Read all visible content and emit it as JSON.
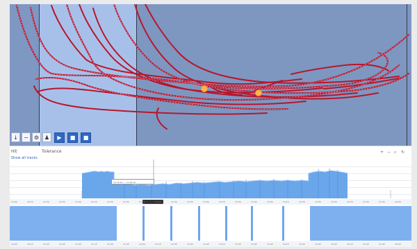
{
  "toolbar": {
    "left_label": "Hit",
    "mid_label": "Tolerance",
    "link": "Show all tracks"
  },
  "tooltip": {
    "text": "10:34:22 — 11:58:44"
  },
  "axis": {
    "top_ticks": [
      "10:00",
      "10:15",
      "10:30",
      "10:45",
      "11:00",
      "11:15",
      "11:30",
      "11:45",
      "12:00",
      "12:15",
      "12:30",
      "12:45",
      "13:00",
      "13:15",
      "13:30",
      "13:45",
      "14:00",
      "14:15",
      "14:30",
      "14:45",
      "15:00",
      "15:15",
      "15:30",
      "15:45",
      "16:00"
    ],
    "bottom_ticks": [
      "10:00",
      "10:15",
      "10:30",
      "10:45",
      "11:00",
      "11:15",
      "11:30",
      "11:45",
      "12:00",
      "12:15",
      "12:30",
      "12:45",
      "13:00",
      "13:15",
      "13:30",
      "13:45",
      "14:00",
      "14:15",
      "14:30",
      "14:45",
      "15:00",
      "15:15",
      "15:30",
      "15:45",
      "16:00"
    ]
  },
  "icons": [
    "download-icon",
    "minus-icon",
    "settings-icon",
    "person-icon",
    "play-icon",
    "pause-icon",
    "stop-icon",
    "zoom-in-icon",
    "zoom-out-icon",
    "search-icon",
    "reset-icon"
  ],
  "colors": {
    "map_bg": "#7e97c1",
    "selection": "#a7c0ea",
    "track": "#b7162b",
    "bar": "#6aa6ea"
  }
}
